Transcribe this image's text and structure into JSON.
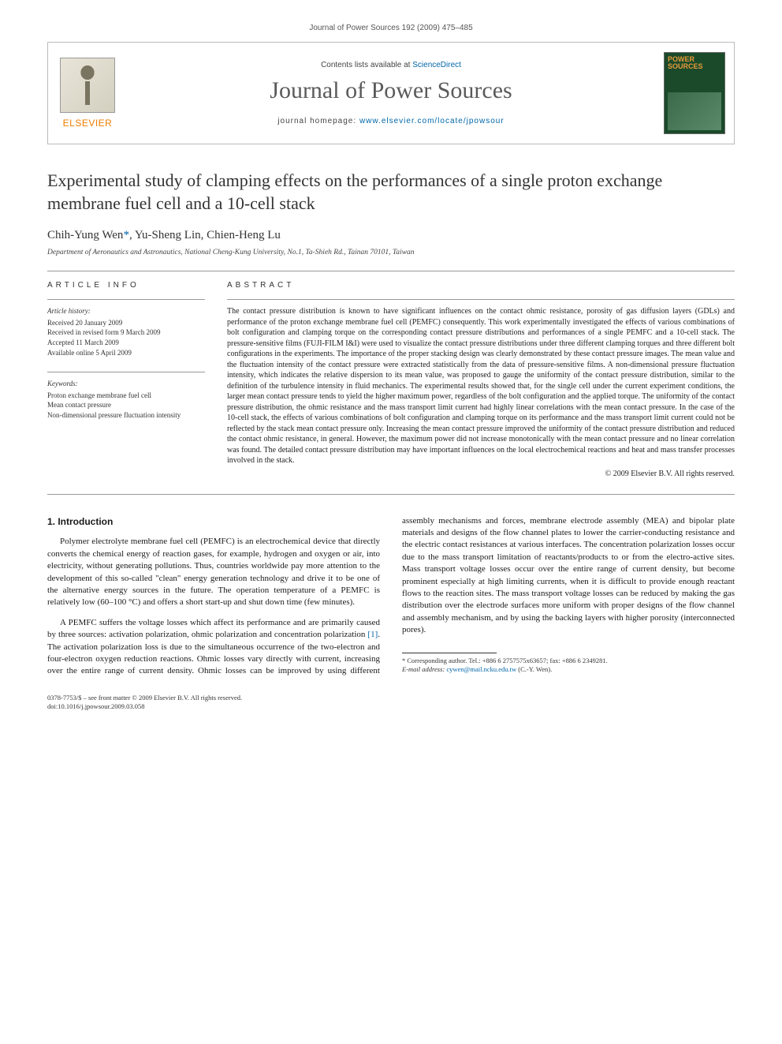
{
  "header": {
    "running": "Journal of Power Sources 192 (2009) 475–485"
  },
  "banner": {
    "contents_prefix": "Contents lists available at ",
    "contents_link": "ScienceDirect",
    "journal": "Journal of Power Sources",
    "homepage_prefix": "journal homepage: ",
    "homepage_link": "www.elsevier.com/locate/jpowsour",
    "publisher": "ELSEVIER",
    "cover_label": "POWER SOURCES"
  },
  "article": {
    "title": "Experimental study of clamping effects on the performances of a single proton exchange membrane fuel cell and a 10-cell stack",
    "authors_html": "Chih-Yung Wen*, Yu-Sheng Lin, Chien-Heng Lu",
    "authors": {
      "a1": "Chih-Yung Wen",
      "corr": "*",
      "a2": ", Yu-Sheng Lin, Chien-Heng Lu"
    },
    "affiliation": "Department of Aeronautics and Astronautics, National Cheng-Kung University, No.1, Ta-Shieh Rd., Tainan 70101, Taiwan"
  },
  "info": {
    "article_info_label": "ARTICLE INFO",
    "abstract_label": "ABSTRACT",
    "history_label": "Article history:",
    "history": {
      "received": "Received 20 January 2009",
      "revised": "Received in revised form 9 March 2009",
      "accepted": "Accepted 11 March 2009",
      "online": "Available online 5 April 2009"
    },
    "keywords_label": "Keywords:",
    "keywords": {
      "k1": "Proton exchange membrane fuel cell",
      "k2": "Mean contact pressure",
      "k3": "Non-dimensional pressure fluctuation intensity"
    }
  },
  "abstract": {
    "text": "The contact pressure distribution is known to have significant influences on the contact ohmic resistance, porosity of gas diffusion layers (GDLs) and performance of the proton exchange membrane fuel cell (PEMFC) consequently. This work experimentally investigated the effects of various combinations of bolt configuration and clamping torque on the corresponding contact pressure distributions and performances of a single PEMFC and a 10-cell stack. The pressure-sensitive films (FUJI-FILM I&I) were used to visualize the contact pressure distributions under three different clamping torques and three different bolt configurations in the experiments. The importance of the proper stacking design was clearly demonstrated by these contact pressure images. The mean value and the fluctuation intensity of the contact pressure were extracted statistically from the data of pressure-sensitive films. A non-dimensional pressure fluctuation intensity, which indicates the relative dispersion to its mean value, was proposed to gauge the uniformity of the contact pressure distribution, similar to the definition of the turbulence intensity in fluid mechanics. The experimental results showed that, for the single cell under the current experiment conditions, the larger mean contact pressure tends to yield the higher maximum power, regardless of the bolt configuration and the applied torque. The uniformity of the contact pressure distribution, the ohmic resistance and the mass transport limit current had highly linear correlations with the mean contact pressure. In the case of the 10-cell stack, the effects of various combinations of bolt configuration and clamping torque on its performance and the mass transport limit current could not be reflected by the stack mean contact pressure only. Increasing the mean contact pressure improved the uniformity of the contact pressure distribution and reduced the contact ohmic resistance, in general. However, the maximum power did not increase monotonically with the mean contact pressure and no linear correlation was found. The detailed contact pressure distribution may have important influences on the local electrochemical reactions and heat and mass transfer processes involved in the stack.",
    "copyright": "© 2009 Elsevier B.V. All rights reserved."
  },
  "body": {
    "section1_title": "1. Introduction",
    "p1": "Polymer electrolyte membrane fuel cell (PEMFC) is an electrochemical device that directly converts the chemical energy of reaction gases, for example, hydrogen and oxygen or air, into electricity, without generating pollutions. Thus, countries worldwide pay more attention to the development of this so-called \"clean\" energy generation technology and drive it to be one of the alternative energy sources in the future. The operation temperature of a PEMFC is relatively low (60–100 °C) and offers a short start-up and shut down time (few minutes).",
    "p2a": "A PEMFC suffers the voltage losses which affect its performance and are primarily caused by three sources: activation polarization, ohmic polarization and concentration polarization ",
    "p2_cite": "[1]",
    "p2b": ". The activation polarization loss is due to the simultaneous occurrence of the two-electron and four-electron oxygen reduction reactions. Ohmic losses vary directly with current, increasing over the entire range of current density. Ohmic losses can be improved by using different assembly mechanisms and forces, membrane electrode assembly (MEA) and bipolar plate materials and designs of the flow channel plates to lower the carrier-conducting resistance and the electric contact resistances at various interfaces. The concentration polarization losses occur due to the mass transport limitation of reactants/products to or from the electro-active sites. Mass transport voltage losses occur over the entire range of current density, but become prominent especially at high limiting currents, when it is difficult to provide enough reactant flows to the reaction sites. The mass transport voltage losses can be reduced by making the gas distribution over the electrode surfaces more uniform with proper designs of the flow channel and assembly mechanism, and by using the backing layers with higher porosity (interconnected pores)."
  },
  "footnote": {
    "corr": "* Corresponding author. Tel.: +886 6 2757575x63657; fax: +886 6 2349281.",
    "email_label": "E-mail address: ",
    "email": "cywen@mail.ncku.edu.tw",
    "email_who": " (C.-Y. Wen)."
  },
  "bottom": {
    "line1": "0378-7753/$ – see front matter © 2009 Elsevier B.V. All rights reserved.",
    "line2": "doi:10.1016/j.jpowsour.2009.03.058"
  },
  "colors": {
    "link": "#0066aa",
    "elsevier": "#ee7d00",
    "cover_bg": "#1a4a2a"
  }
}
